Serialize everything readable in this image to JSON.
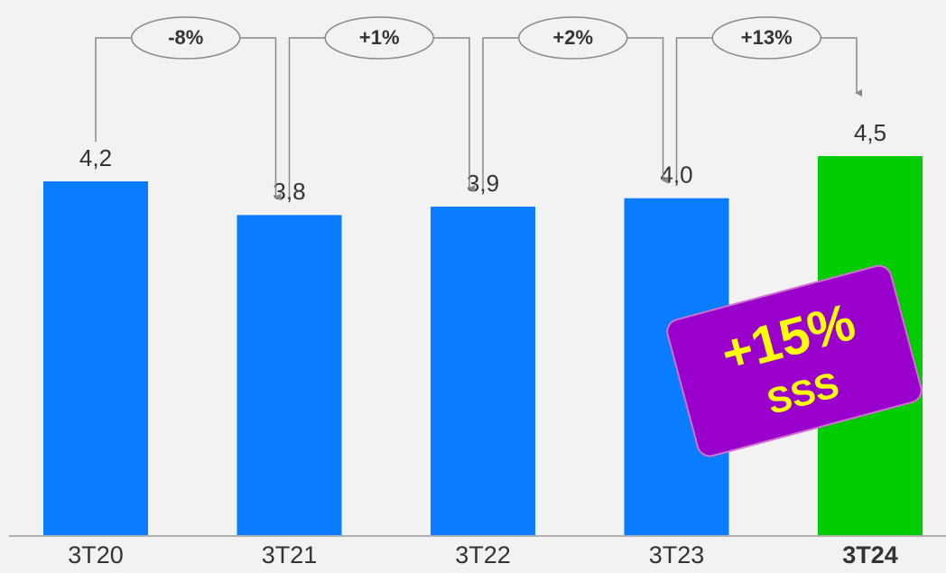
{
  "chart_data": {
    "type": "bar",
    "categories": [
      "3T20",
      "3T21",
      "3T22",
      "3T23",
      "3T24"
    ],
    "values": [
      4.2,
      3.8,
      3.9,
      4.0,
      4.5
    ],
    "value_labels": [
      "4,2",
      "3,8",
      "3,9",
      "4,0",
      "4,5"
    ],
    "colors": [
      "#0a7cff",
      "#0a7cff",
      "#0a7cff",
      "#0a7cff",
      "#00cc00"
    ],
    "highlight": 4,
    "ylim": [
      0,
      5.1
    ],
    "changes": [
      "-8%",
      "+1%",
      "+2%",
      "+13%"
    ],
    "badge": {
      "value": "+15%",
      "label": "SSS"
    }
  }
}
